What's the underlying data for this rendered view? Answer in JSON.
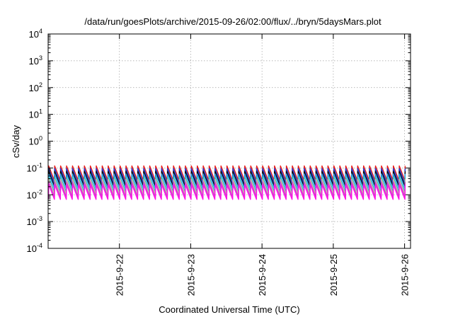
{
  "chart_data": {
    "type": "line",
    "title": "/data/run/goesPlots/archive/2015-09-26/02:00/flux/../bryn/5daysMars.plot",
    "xlabel": "Coordinated Universal Time (UTC)",
    "ylabel": "cSv/day",
    "yscale": "log",
    "grid": true,
    "legend": "none",
    "xlim": [
      "2015-09-21 00:00",
      "2015-09-26 02:00"
    ],
    "ylim": [
      0.0001,
      10000
    ],
    "x_ticks": [
      {
        "value": "2015-09-22 00:00",
        "label": "2015-9-22"
      },
      {
        "value": "2015-09-23 00:00",
        "label": "2015-9-23"
      },
      {
        "value": "2015-09-24 00:00",
        "label": "2015-9-24"
      },
      {
        "value": "2015-09-25 00:00",
        "label": "2015-9-25"
      },
      {
        "value": "2015-09-26 00:00",
        "label": "2015-9-26"
      }
    ],
    "y_ticks": [
      {
        "value": 0.0001,
        "base": "10",
        "exp": "-4"
      },
      {
        "value": 0.001,
        "base": "10",
        "exp": "-3"
      },
      {
        "value": 0.01,
        "base": "10",
        "exp": "-2"
      },
      {
        "value": 0.1,
        "base": "10",
        "exp": "-1"
      },
      {
        "value": 1,
        "base": "10",
        "exp": "0"
      },
      {
        "value": 10,
        "base": "10",
        "exp": "1"
      },
      {
        "value": 100,
        "base": "10",
        "exp": "2"
      },
      {
        "value": 1000,
        "base": "10",
        "exp": "3"
      },
      {
        "value": 10000,
        "base": "10",
        "exp": "4"
      }
    ],
    "pattern": {
      "period_hours": 2,
      "peak_offset_hours": 0.2,
      "decay_to_trough_ratio": 0.28
    },
    "series": [
      {
        "color": "#e8201c",
        "peak": 0.12
      },
      {
        "color": "#1e3bd8",
        "peak": 0.095
      },
      {
        "color": "#0a0a0a",
        "peak": 0.075
      },
      {
        "color": "#2a9ee8",
        "peak": 0.06
      },
      {
        "color": "#20c8c0",
        "peak": 0.045
      },
      {
        "color": "#d2b0a8",
        "peak": 0.038
      },
      {
        "color": "#c44fc4",
        "peak": 0.03
      },
      {
        "color": "#ff10e8",
        "peak": 0.024
      }
    ]
  }
}
